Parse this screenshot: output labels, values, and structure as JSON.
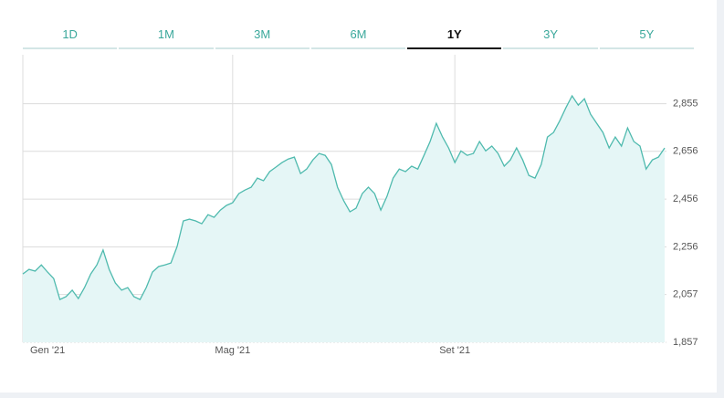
{
  "tabs": {
    "items": [
      "1D",
      "1M",
      "3M",
      "6M",
      "1Y",
      "3Y",
      "5Y"
    ],
    "selected": 4
  },
  "chart_data": {
    "type": "area",
    "color": "#4fbaae",
    "fill": "#e5f6f6",
    "values": [
      2143,
      2162,
      2155,
      2181,
      2151,
      2124,
      2036,
      2048,
      2075,
      2040,
      2086,
      2143,
      2181,
      2243,
      2162,
      2105,
      2075,
      2086,
      2048,
      2036,
      2086,
      2151,
      2174,
      2181,
      2189,
      2258,
      2365,
      2372,
      2365,
      2353,
      2391,
      2380,
      2410,
      2430,
      2441,
      2479,
      2494,
      2506,
      2544,
      2533,
      2571,
      2590,
      2609,
      2624,
      2632,
      2563,
      2582,
      2620,
      2647,
      2639,
      2601,
      2506,
      2449,
      2403,
      2418,
      2479,
      2506,
      2479,
      2410,
      2467,
      2544,
      2582,
      2571,
      2594,
      2582,
      2639,
      2697,
      2773,
      2716,
      2670,
      2609,
      2658,
      2639,
      2647,
      2697,
      2658,
      2678,
      2647,
      2594,
      2620,
      2670,
      2620,
      2555,
      2544,
      2601,
      2716,
      2735,
      2784,
      2838,
      2888,
      2849,
      2876,
      2811,
      2773,
      2735,
      2670,
      2716,
      2678,
      2754,
      2697,
      2678,
      2582,
      2620,
      2632,
      2670
    ],
    "xlim": [
      0,
      104
    ],
    "xticks": [
      {
        "value": 0,
        "label": "Gen '21"
      },
      {
        "value": 34,
        "label": "Mag '21"
      },
      {
        "value": 70,
        "label": "Set '21"
      }
    ],
    "ylim": [
      1857,
      3060
    ],
    "yticks": [
      {
        "value": 1857,
        "label": "1,857"
      },
      {
        "value": 2057,
        "label": "2,057"
      },
      {
        "value": 2256,
        "label": "2,256"
      },
      {
        "value": 2456,
        "label": "2,456"
      },
      {
        "value": 2656,
        "label": "2,656"
      },
      {
        "value": 2855,
        "label": "2,855"
      }
    ],
    "grid": true
  }
}
